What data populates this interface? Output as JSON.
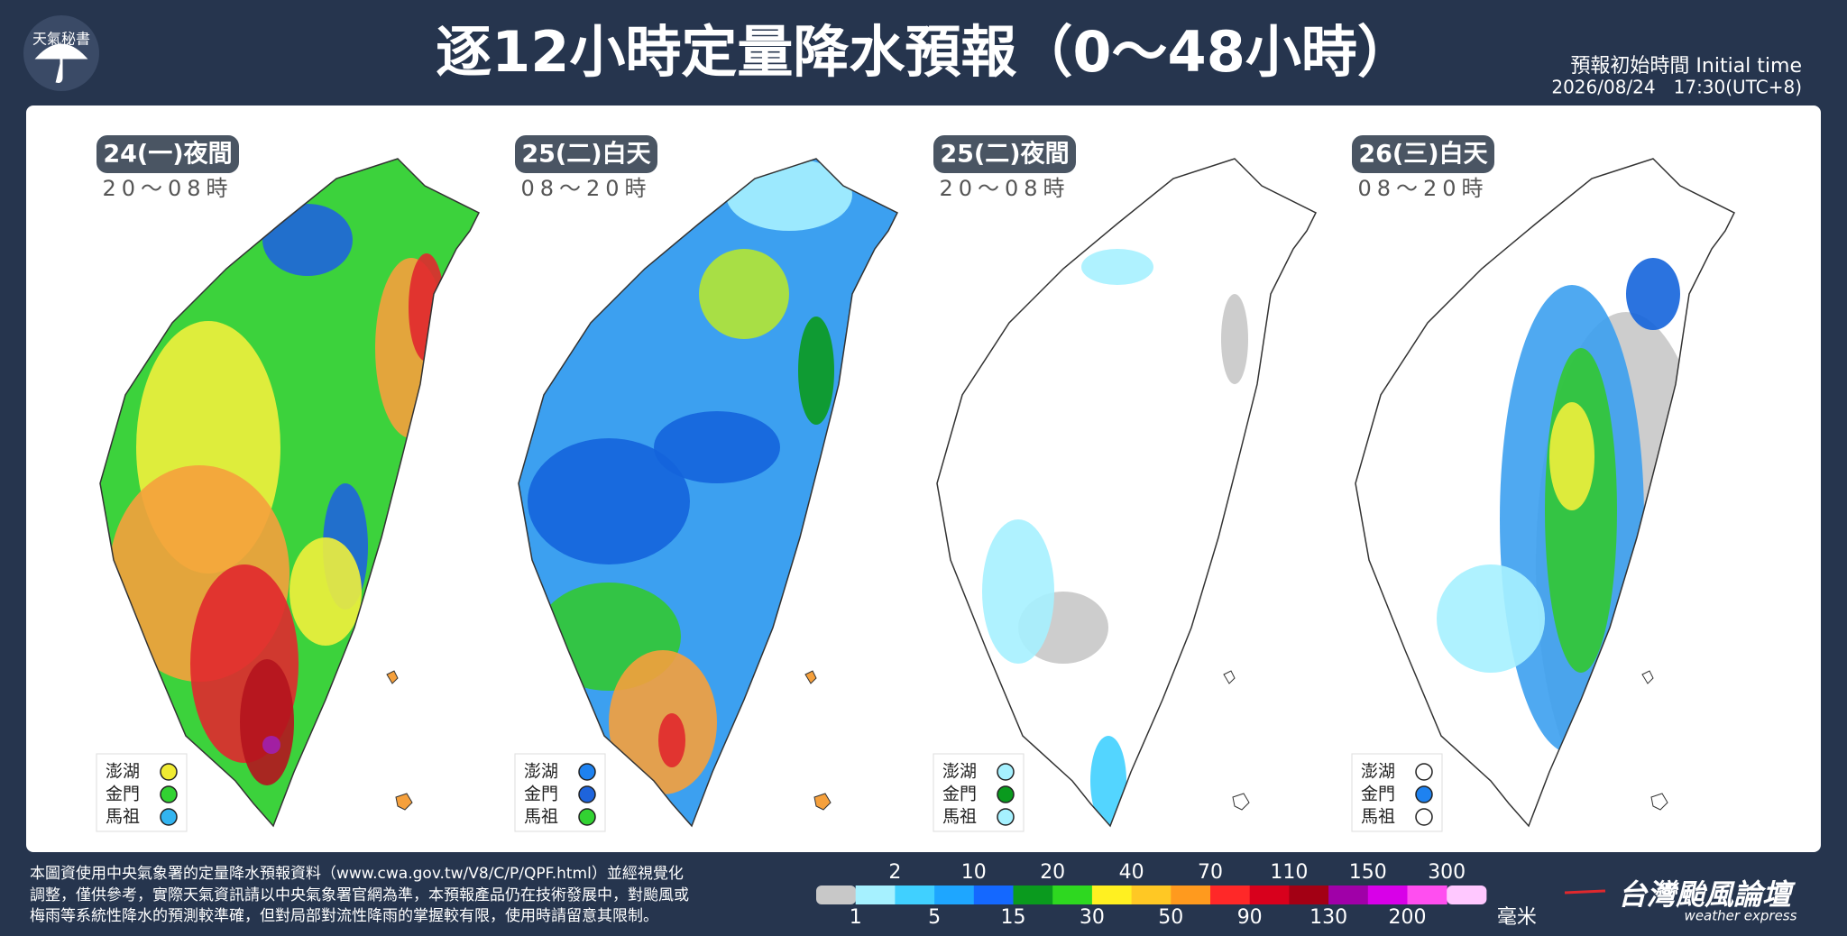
{
  "header": {
    "logo": "天氣秘書",
    "title": "逐12小時定量降水預報（0～48小時）",
    "initial_time_label": "預報初始時間 Initial time",
    "initial_time": "2026/08/24　17:30(UTC+8)"
  },
  "panels": [
    {
      "date": "24(一)夜間",
      "hours": "20～08時",
      "islands": [
        {
          "name": "澎湖",
          "color": "#f0eb32"
        },
        {
          "name": "金門",
          "color": "#32d232"
        },
        {
          "name": "馬祖",
          "color": "#32b4f0"
        }
      ]
    },
    {
      "date": "25(二)白天",
      "hours": "08～20時",
      "islands": [
        {
          "name": "澎湖",
          "color": "#1e82f0"
        },
        {
          "name": "金門",
          "color": "#1e64dc"
        },
        {
          "name": "馬祖",
          "color": "#32d232"
        }
      ]
    },
    {
      "date": "25(二)夜間",
      "hours": "20～08時",
      "islands": [
        {
          "name": "澎湖",
          "color": "#a6f1ff"
        },
        {
          "name": "金門",
          "color": "#0a9a1e"
        },
        {
          "name": "馬祖",
          "color": "#a6f1ff"
        }
      ]
    },
    {
      "date": "26(三)白天",
      "hours": "08～20時",
      "islands": [
        {
          "name": "澎湖",
          "color": "#ffffff"
        },
        {
          "name": "金門",
          "color": "#1e82f0"
        },
        {
          "name": "馬祖",
          "color": "#ffffff"
        }
      ]
    }
  ],
  "legend": {
    "thresholds": [
      1,
      2,
      5,
      10,
      15,
      20,
      30,
      40,
      50,
      70,
      90,
      110,
      130,
      150,
      200,
      300
    ],
    "colors": [
      "#c8c8c8",
      "#a6f1ff",
      "#40d0ff",
      "#1ea6ff",
      "#1468ff",
      "#0a9a1e",
      "#2ed820",
      "#fff021",
      "#ffc824",
      "#ff9a1e",
      "#ff2828",
      "#d8001c",
      "#a30014",
      "#a000a8",
      "#d800e8",
      "#ff4ef0",
      "#ffc8ff"
    ],
    "unit": "毫米"
  },
  "footer": {
    "note": [
      "本圖資使用中央氣象署的定量降水預報資料（www.cwa.gov.tw/V8/C/P/QPF.html）並經視覺化",
      "調整，僅供參考，實際天氣資訊請以中央氣象署官網為準，本預報產品仍在技術發展中，對颱風或",
      "梅雨等系統性降水的預測較準確，但對局部對流性降雨的掌握較有限，使用時請留意其限制。"
    ],
    "brand": "台灣颱風論壇",
    "brand_en": "weather express"
  }
}
